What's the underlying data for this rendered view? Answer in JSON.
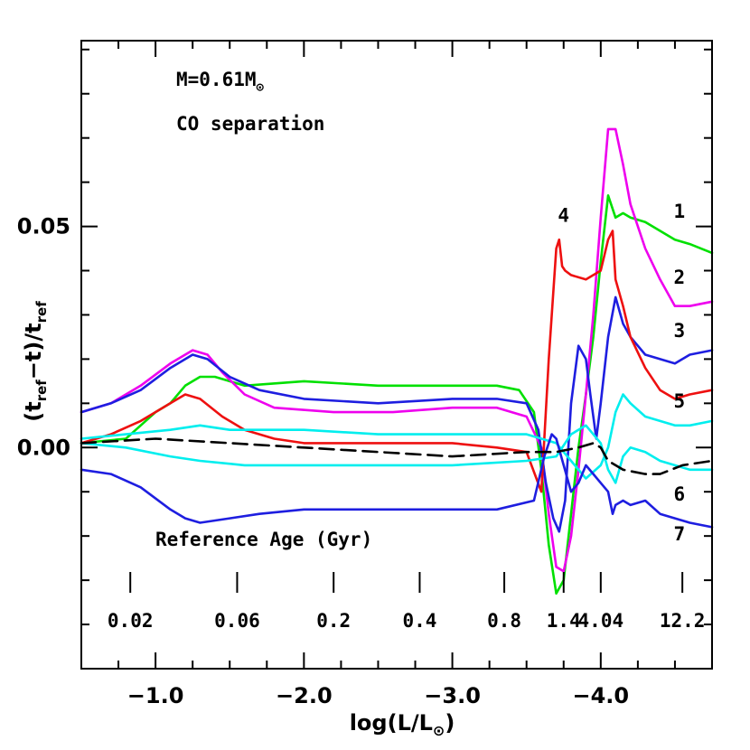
{
  "chart_data": {
    "type": "line",
    "xlabel": "log(L/L",
    "xlabel_sub": "⊙",
    "xlabel_close": ")",
    "ylabel_parts": [
      "(t",
      "ref",
      "−t)/t",
      "ref"
    ],
    "x_reversed": true,
    "xlim": [
      -0.5,
      -4.75
    ],
    "ylim": [
      -0.05,
      0.092
    ],
    "x_ticks": [
      {
        "value": -1.0,
        "label": "−1.0"
      },
      {
        "value": -2.0,
        "label": "−2.0"
      },
      {
        "value": -3.0,
        "label": "−3.0"
      },
      {
        "value": -4.0,
        "label": "−4.0"
      }
    ],
    "y_ticks": [
      {
        "value": 0.0,
        "label": "0.00"
      },
      {
        "value": 0.05,
        "label": "0.05"
      }
    ],
    "annotations": {
      "mass_prefix": "M=0.61M",
      "mass_sub": "⊙",
      "process": "CO separation",
      "age_title": "Reference Age (Gyr)"
    },
    "age_marks": [
      {
        "x": -0.83,
        "label": "0.02"
      },
      {
        "x": -1.55,
        "label": "0.06"
      },
      {
        "x": -2.2,
        "label": "0.2"
      },
      {
        "x": -2.78,
        "label": "0.4"
      },
      {
        "x": -3.35,
        "label": "0.8"
      },
      {
        "x": -3.75,
        "label": "1.4"
      },
      {
        "x": -4.0,
        "label": "4.04"
      },
      {
        "x": -4.55,
        "label": "12.2"
      }
    ],
    "curve_labels": [
      {
        "label": "1",
        "x": -4.53,
        "y": 0.052
      },
      {
        "label": "2",
        "x": -4.53,
        "y": 0.037
      },
      {
        "label": "3",
        "x": -4.53,
        "y": 0.025
      },
      {
        "label": "4",
        "x": -3.75,
        "y": 0.051
      },
      {
        "label": "5",
        "x": -4.53,
        "y": 0.009
      },
      {
        "label": "6",
        "x": -4.53,
        "y": -0.012
      },
      {
        "label": "7",
        "x": -4.53,
        "y": -0.021
      }
    ],
    "series": [
      {
        "id": "1",
        "color": "#00e000",
        "dash": "",
        "x": [
          -0.5,
          -0.8,
          -0.9,
          -1.0,
          -1.1,
          -1.2,
          -1.3,
          -1.4,
          -1.5,
          -1.6,
          -2.0,
          -2.5,
          -3.0,
          -3.3,
          -3.45,
          -3.55,
          -3.6,
          -3.65,
          -3.7,
          -3.75,
          -3.8,
          -3.85,
          -3.9,
          -3.95,
          -4.0,
          -4.05,
          -4.1,
          -4.15,
          -4.2,
          -4.3,
          -4.4,
          -4.5,
          -4.6,
          -4.75
        ],
        "y": [
          0.001,
          0.002,
          0.005,
          0.008,
          0.01,
          0.014,
          0.016,
          0.016,
          0.015,
          0.014,
          0.015,
          0.014,
          0.014,
          0.014,
          0.013,
          0.008,
          -0.005,
          -0.022,
          -0.033,
          -0.03,
          -0.015,
          0.0,
          0.012,
          0.025,
          0.042,
          0.057,
          0.052,
          0.053,
          0.052,
          0.051,
          0.049,
          0.047,
          0.046,
          0.044
        ]
      },
      {
        "id": "2",
        "color": "#ee00ee",
        "dash": "",
        "x": [
          -0.5,
          -0.7,
          -0.9,
          -1.1,
          -1.25,
          -1.35,
          -1.45,
          -1.6,
          -1.8,
          -2.2,
          -2.6,
          -3.0,
          -3.3,
          -3.5,
          -3.6,
          -3.65,
          -3.7,
          -3.75,
          -3.8,
          -3.85,
          -3.9,
          -3.95,
          -4.0,
          -4.05,
          -4.1,
          -4.15,
          -4.2,
          -4.3,
          -4.4,
          -4.5,
          -4.6,
          -4.75
        ],
        "y": [
          0.008,
          0.01,
          0.014,
          0.019,
          0.022,
          0.021,
          0.017,
          0.012,
          0.009,
          0.008,
          0.008,
          0.009,
          0.009,
          0.007,
          0.0,
          -0.015,
          -0.027,
          -0.028,
          -0.02,
          -0.005,
          0.012,
          0.03,
          0.052,
          0.072,
          0.072,
          0.064,
          0.055,
          0.045,
          0.038,
          0.032,
          0.032,
          0.033
        ]
      },
      {
        "id": "3",
        "color": "#1e1ee0",
        "dash": "",
        "x": [
          -0.5,
          -0.7,
          -0.9,
          -1.1,
          -1.25,
          -1.35,
          -1.5,
          -1.7,
          -2.0,
          -2.5,
          -3.0,
          -3.3,
          -3.5,
          -3.58,
          -3.63,
          -3.68,
          -3.72,
          -3.76,
          -3.8,
          -3.85,
          -3.9,
          -3.93,
          -3.97,
          -4.0,
          -4.05,
          -4.1,
          -4.15,
          -4.2,
          -4.3,
          -4.4,
          -4.5,
          -4.6,
          -4.75
        ],
        "y": [
          0.008,
          0.01,
          0.013,
          0.018,
          0.021,
          0.02,
          0.016,
          0.013,
          0.011,
          0.01,
          0.011,
          0.011,
          0.01,
          0.004,
          -0.008,
          -0.016,
          -0.019,
          -0.012,
          0.01,
          0.023,
          0.02,
          0.012,
          0.002,
          0.01,
          0.025,
          0.034,
          0.028,
          0.025,
          0.021,
          0.02,
          0.019,
          0.021,
          0.022
        ]
      },
      {
        "id": "4",
        "color": "#ee1010",
        "dash": "",
        "x": [
          -0.5,
          -0.7,
          -0.9,
          -1.1,
          -1.2,
          -1.3,
          -1.45,
          -1.6,
          -1.8,
          -2.0,
          -2.5,
          -3.0,
          -3.3,
          -3.5,
          -3.6,
          -3.65,
          -3.7,
          -3.72,
          -3.74,
          -3.76,
          -3.8,
          -3.9,
          -4.0,
          -4.05,
          -4.08,
          -4.1,
          -4.15,
          -4.2,
          -4.3,
          -4.4,
          -4.5,
          -4.6,
          -4.75
        ],
        "y": [
          0.001,
          0.003,
          0.006,
          0.01,
          0.012,
          0.011,
          0.007,
          0.004,
          0.002,
          0.001,
          0.001,
          0.001,
          0.0,
          -0.001,
          -0.01,
          0.02,
          0.045,
          0.047,
          0.041,
          0.04,
          0.039,
          0.038,
          0.04,
          0.047,
          0.049,
          0.038,
          0.032,
          0.025,
          0.018,
          0.013,
          0.011,
          0.012,
          0.013
        ]
      },
      {
        "id": "5",
        "color": "#00eeee",
        "dash": "",
        "x": [
          -0.5,
          -0.8,
          -1.1,
          -1.3,
          -1.5,
          -2.0,
          -2.5,
          -3.0,
          -3.5,
          -3.7,
          -3.8,
          -3.9,
          -4.0,
          -4.05,
          -4.1,
          -4.15,
          -4.2,
          -4.3,
          -4.4,
          -4.5,
          -4.6,
          -4.75
        ],
        "y": [
          0.002,
          0.003,
          0.004,
          0.005,
          0.004,
          0.004,
          0.003,
          0.003,
          0.003,
          0.001,
          -0.003,
          -0.007,
          -0.004,
          0.0,
          0.008,
          0.012,
          0.01,
          0.007,
          0.006,
          0.005,
          0.005,
          0.006
        ]
      },
      {
        "id": "6",
        "color": "#00eeee",
        "dash": "",
        "x": [
          -0.5,
          -0.8,
          -1.1,
          -1.3,
          -1.6,
          -2.0,
          -2.5,
          -3.0,
          -3.5,
          -3.7,
          -3.8,
          -3.9,
          -4.0,
          -4.05,
          -4.1,
          -4.15,
          -4.2,
          -4.3,
          -4.4,
          -4.5,
          -4.6,
          -4.75
        ],
        "y": [
          0.001,
          0.0,
          -0.002,
          -0.003,
          -0.004,
          -0.004,
          -0.004,
          -0.004,
          -0.003,
          -0.002,
          0.003,
          0.005,
          0.001,
          -0.005,
          -0.008,
          -0.002,
          0.0,
          -0.001,
          -0.003,
          -0.004,
          -0.005,
          -0.005
        ]
      },
      {
        "id": "7",
        "color": "#1e1ee0",
        "dash": "",
        "x": [
          -0.5,
          -0.7,
          -0.9,
          -1.1,
          -1.2,
          -1.3,
          -1.5,
          -1.7,
          -2.0,
          -2.5,
          -3.0,
          -3.3,
          -3.55,
          -3.62,
          -3.67,
          -3.7,
          -3.75,
          -3.8,
          -3.85,
          -3.9,
          -3.95,
          -4.0,
          -4.05,
          -4.08,
          -4.1,
          -4.15,
          -4.2,
          -4.3,
          -4.4,
          -4.5,
          -4.6,
          -4.75
        ],
        "y": [
          -0.005,
          -0.006,
          -0.009,
          -0.014,
          -0.016,
          -0.017,
          -0.016,
          -0.015,
          -0.014,
          -0.014,
          -0.014,
          -0.014,
          -0.012,
          -0.002,
          0.003,
          0.002,
          -0.004,
          -0.01,
          -0.008,
          -0.004,
          -0.006,
          -0.008,
          -0.01,
          -0.015,
          -0.013,
          -0.012,
          -0.013,
          -0.012,
          -0.015,
          -0.016,
          -0.017,
          -0.018
        ]
      },
      {
        "id": "ref",
        "color": "#000000",
        "dash": "16 8",
        "x": [
          -0.5,
          -1.0,
          -1.5,
          -2.0,
          -2.5,
          -3.0,
          -3.5,
          -3.7,
          -3.85,
          -3.95,
          -4.0,
          -4.05,
          -4.15,
          -4.3,
          -4.4,
          -4.55,
          -4.75
        ],
        "y": [
          0.001,
          0.002,
          0.001,
          0.0,
          -0.001,
          -0.002,
          -0.001,
          -0.001,
          0.0,
          0.001,
          0.0,
          -0.003,
          -0.005,
          -0.006,
          -0.006,
          -0.004,
          -0.003
        ]
      }
    ]
  }
}
